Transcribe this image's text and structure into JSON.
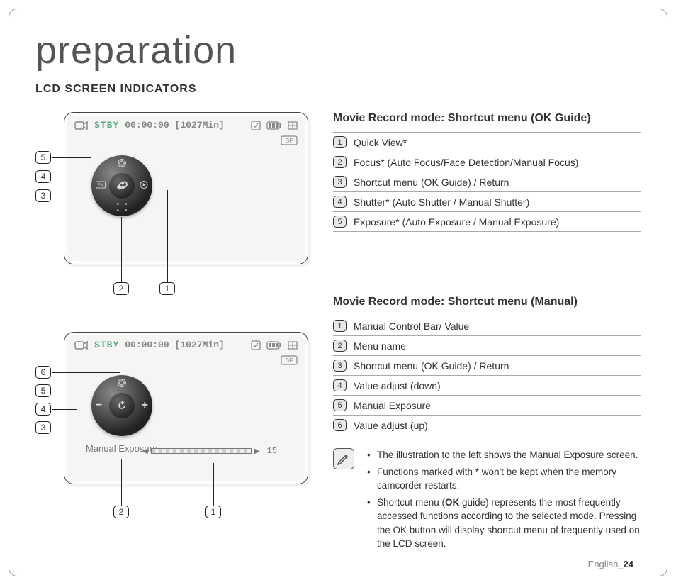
{
  "page_title": "preparation",
  "section_heading": "LCD SCREEN INDICATORS",
  "lcd": {
    "status": "STBY",
    "time": "00:00:00",
    "remaining": "[1027Min]"
  },
  "ok_guide": {
    "heading": "Movie Record mode: Shortcut menu (OK Guide)",
    "items": [
      "Quick View*",
      "Focus* (Auto Focus/Face Detection/Manual Focus)",
      "Shortcut menu (OK Guide) / Return",
      "Shutter* (Auto Shutter / Manual Shutter)",
      "Exposure* (Auto Exposure / Manual Exposure)"
    ],
    "callouts": [
      "5",
      "4",
      "3",
      "2",
      "1"
    ]
  },
  "manual": {
    "heading": "Movie Record mode: Shortcut menu (Manual)",
    "items": [
      "Manual Control Bar/ Value",
      "Menu name",
      "Shortcut menu (OK Guide) / Return",
      "Value adjust (down)",
      "Manual Exposure",
      "Value adjust (up)"
    ],
    "callouts": [
      "6",
      "5",
      "4",
      "3",
      "2",
      "1"
    ],
    "menu_name": "Manual Exposure",
    "bar_value": "15"
  },
  "notes": [
    "The illustration to the left shows the Manual Exposure screen.",
    "Functions marked with * won't be kept when the memory camcorder restarts.",
    "Shortcut menu (OK guide) represents the most frequently accessed functions according to the selected mode. Pressing the OK button will display shortcut menu of frequently used on the LCD screen."
  ],
  "footer_lang": "English",
  "footer_page": "24"
}
